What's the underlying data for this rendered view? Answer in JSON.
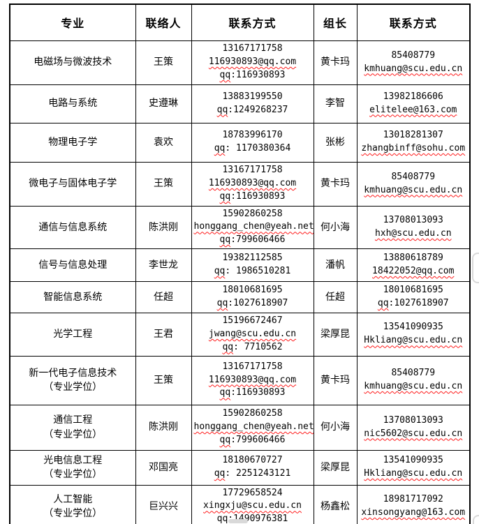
{
  "colors": {
    "background": "#ffffff",
    "border": "#000000",
    "spellcheck_underline": "#ff1a1a",
    "scroll_thumb": "#d9d9d9"
  },
  "table": {
    "headers": [
      "专业",
      "联络人",
      "联系方式",
      "组长",
      "联系方式"
    ],
    "rows": [
      {
        "major": [
          "电磁场与微波技术"
        ],
        "contact_person": "王策",
        "contact_info": [
          "13167171758",
          "116930893@qq.com",
          "qq:116930893"
        ],
        "leader": "黄卡玛",
        "leader_info": [
          "85408779",
          "kmhuang@scu.edu.cn"
        ]
      },
      {
        "major": [
          "电路与系统"
        ],
        "contact_person": "史遵琳",
        "contact_info": [
          "13883199550",
          "qq:1249268237"
        ],
        "leader": "李智",
        "leader_info": [
          "13982186606",
          "elitelee@163.com"
        ]
      },
      {
        "major": [
          "物理电子学"
        ],
        "contact_person": "袁欢",
        "contact_info": [
          "18783996170",
          "qq: 1170380364"
        ],
        "leader": "张彬",
        "leader_info": [
          "13018281307",
          "zhangbinff@sohu.com"
        ]
      },
      {
        "major": [
          "微电子与固体电子学"
        ],
        "contact_person": "王策",
        "contact_info": [
          "13167171758",
          "116930893@qq.com",
          "qq:116930893"
        ],
        "leader": "黄卡玛",
        "leader_info": [
          "85408779",
          "kmhuang@scu.edu.cn"
        ]
      },
      {
        "major": [
          "通信与信息系统"
        ],
        "contact_person": "陈洪刚",
        "contact_info": [
          "15902860258",
          "honggang_chen@yeah.net",
          "qq:799606466"
        ],
        "leader": "何小海",
        "leader_info": [
          "13708013093",
          "hxh@scu.edu.cn"
        ]
      },
      {
        "major": [
          "信号与信息处理"
        ],
        "contact_person": "李世龙",
        "contact_info": [
          "19382112585",
          "qq: 1986510281"
        ],
        "leader": "潘帆",
        "leader_info": [
          "13880618789",
          "18422052@qq.com"
        ]
      },
      {
        "major": [
          "智能信息系统"
        ],
        "contact_person": "任超",
        "contact_info": [
          "18010681695",
          "qq:1027618907"
        ],
        "leader": "任超",
        "leader_info": [
          "18010681695",
          "qq:1027618907"
        ]
      },
      {
        "major": [
          "光学工程"
        ],
        "contact_person": "王君",
        "contact_info": [
          "15196672467",
          "jwang@scu.edu.cn",
          "qq: 7710562"
        ],
        "leader": "梁厚昆",
        "leader_info": [
          "13541090935",
          "Hkliang@scu.edu.cn"
        ]
      },
      {
        "major": [
          "新一代电子信息技术",
          "（专业学位）"
        ],
        "contact_person": "王策",
        "contact_info": [
          "13167171758",
          "116930893@qq.com",
          "qq:116930893"
        ],
        "leader": "黄卡玛",
        "leader_info": [
          "85408779",
          "kmhuang@scu.edu.cn"
        ]
      },
      {
        "major": [
          "通信工程",
          "（专业学位）"
        ],
        "contact_person": "陈洪刚",
        "contact_info": [
          "15902860258",
          "honggang_chen@yeah.net",
          "qq:799606466"
        ],
        "leader": "何小海",
        "leader_info": [
          "13708013093",
          "nic5602@scu.edu.cn"
        ]
      },
      {
        "major": [
          "光电信息工程",
          "（专业学位）"
        ],
        "contact_person": "邓国亮",
        "contact_info": [
          "18180670727",
          "qq: 2251243121"
        ],
        "leader": "梁厚昆",
        "leader_info": [
          "13541090935",
          "Hkliang@scu.edu.cn"
        ]
      },
      {
        "major": [
          "人工智能",
          "（专业学位）"
        ],
        "contact_person": "巨兴兴",
        "contact_info": [
          "17729658524",
          "xingxju@scu.edu.cn",
          "qq:1490976381"
        ],
        "leader": "杨鑫松",
        "leader_info": [
          "18981717092",
          "xinsongyang@163.com"
        ]
      }
    ]
  }
}
